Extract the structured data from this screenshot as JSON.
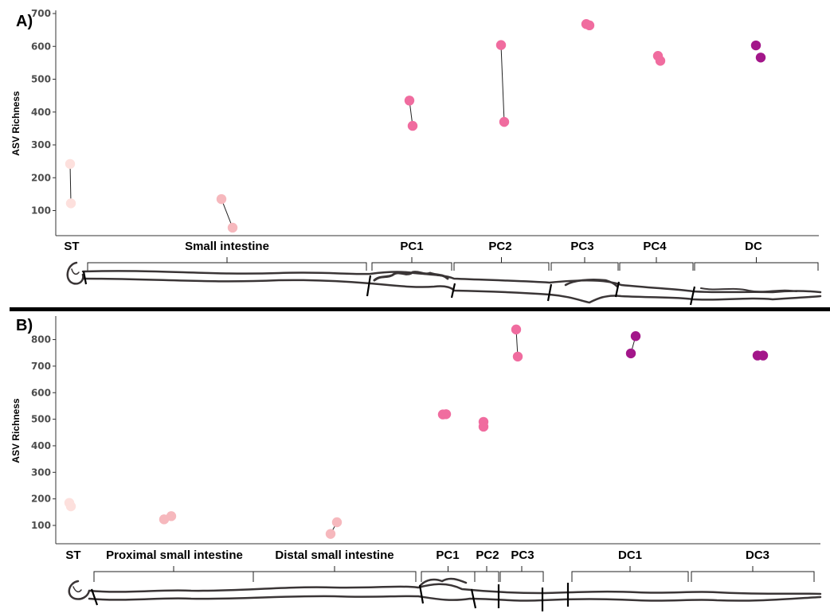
{
  "panel_A": {
    "letter": "A)",
    "ylabel": "ASV Richness",
    "yticks": [
      100,
      200,
      300,
      400,
      500,
      600,
      700
    ]
  },
  "panel_B": {
    "letter": "B)",
    "ylabel": "ASV Richness",
    "yticks": [
      100,
      200,
      300,
      400,
      500,
      600,
      700,
      800
    ]
  },
  "colors": {
    "ST": "#fde0dd",
    "SI": "#f6b8bd",
    "PC": "#f06c9f",
    "DC": "#a3168a",
    "axis": "#333333",
    "tick_text": "#4d4d4d"
  },
  "chart_data": [
    {
      "type": "scatter",
      "panel": "A",
      "ylabel": "ASV Richness",
      "ylim": [
        50,
        700
      ],
      "regions": [
        {
          "label": "ST",
          "color_key": "ST",
          "points": [
            242,
            122
          ],
          "connected": true
        },
        {
          "label": "Small intestine",
          "color_key": "SI",
          "points": [
            135,
            48
          ],
          "connected": true
        },
        {
          "label": "PC1",
          "color_key": "PC",
          "points": [
            435,
            358
          ],
          "connected": true
        },
        {
          "label": "PC2",
          "color_key": "PC",
          "points": [
            604,
            370
          ],
          "connected": true
        },
        {
          "label": "PC3",
          "color_key": "PC",
          "points": [
            668,
            664
          ],
          "connected": false
        },
        {
          "label": "PC4",
          "color_key": "PC",
          "points": [
            571,
            556
          ],
          "connected": false
        },
        {
          "label": "DC",
          "color_key": "DC",
          "points": [
            603,
            566
          ],
          "connected": false
        }
      ]
    },
    {
      "type": "scatter",
      "panel": "B",
      "ylabel": "ASV Richness",
      "ylim": [
        20,
        880
      ],
      "regions": [
        {
          "label": "ST",
          "color_key": "ST",
          "points": [
            185,
            172
          ],
          "connected": false
        },
        {
          "label": "Proximal small intestine",
          "color_key": "SI",
          "points": [
            123,
            135
          ],
          "connected": false
        },
        {
          "label": "Distal small intestine",
          "color_key": "SI",
          "points": [
            68,
            112
          ],
          "connected": true
        },
        {
          "label": "PC1",
          "color_key": "PC",
          "points": [
            518,
            519
          ],
          "connected": false
        },
        {
          "label": "PC2",
          "color_key": "PC",
          "points": [
            490,
            472
          ],
          "connected": false
        },
        {
          "label": "PC3",
          "color_key": "PC",
          "points": [
            838,
            736
          ],
          "connected": true
        },
        {
          "label": "DC1",
          "color_key": "DC",
          "points": [
            813,
            748
          ],
          "connected": true
        },
        {
          "label": "DC3",
          "color_key": "DC",
          "points": [
            740,
            740
          ],
          "connected": false
        }
      ]
    }
  ]
}
